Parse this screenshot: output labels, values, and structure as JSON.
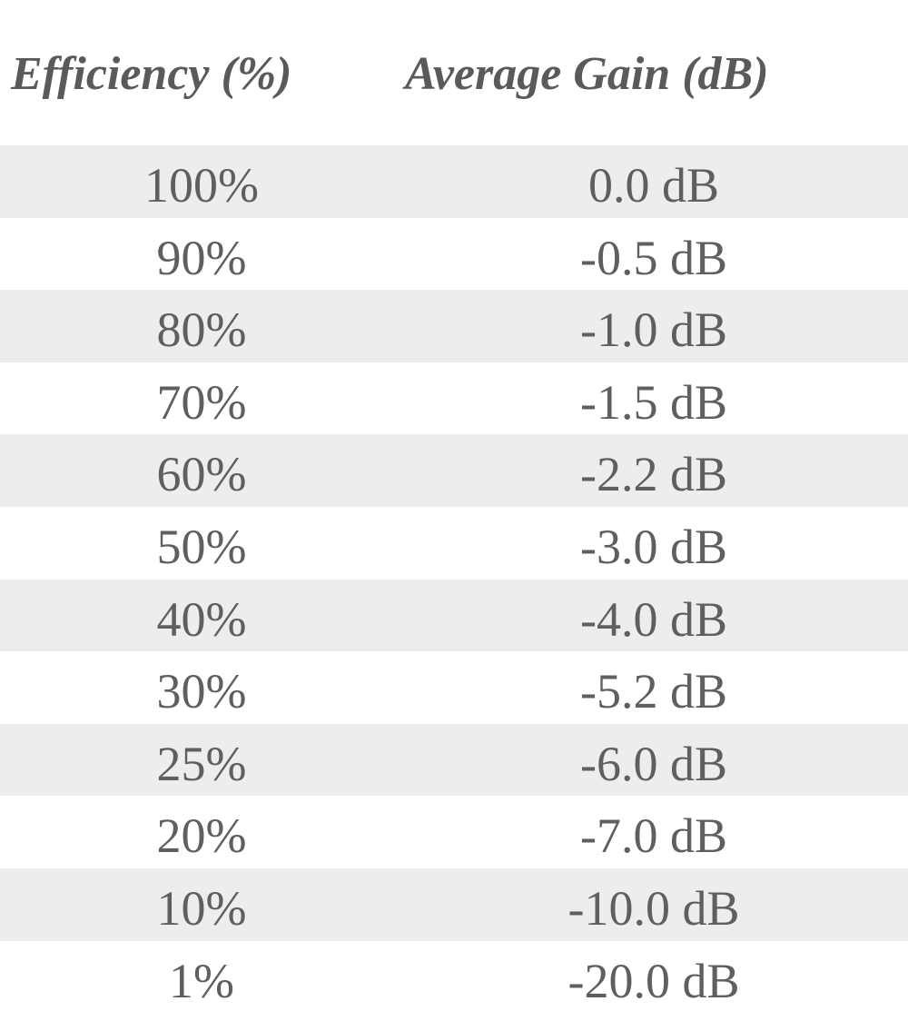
{
  "table": {
    "headers": {
      "efficiency": "Efficiency (%)",
      "gain": "Average Gain (dB)"
    },
    "rows": [
      {
        "efficiency": "100%",
        "gain": "0.0 dB"
      },
      {
        "efficiency": "90%",
        "gain": "-0.5 dB"
      },
      {
        "efficiency": "80%",
        "gain": "-1.0 dB"
      },
      {
        "efficiency": "70%",
        "gain": "-1.5 dB"
      },
      {
        "efficiency": "60%",
        "gain": "-2.2 dB"
      },
      {
        "efficiency": "50%",
        "gain": "-3.0 dB"
      },
      {
        "efficiency": "40%",
        "gain": "-4.0 dB"
      },
      {
        "efficiency": "30%",
        "gain": "-5.2 dB"
      },
      {
        "efficiency": "25%",
        "gain": "-6.0 dB"
      },
      {
        "efficiency": "20%",
        "gain": "-7.0 dB"
      },
      {
        "efficiency": "10%",
        "gain": "-10.0 dB"
      },
      {
        "efficiency": "1%",
        "gain": "-20.0 dB"
      }
    ]
  },
  "colors": {
    "row_shade": "#ededed",
    "text": "#5f5f5f",
    "background": "#ffffff"
  }
}
